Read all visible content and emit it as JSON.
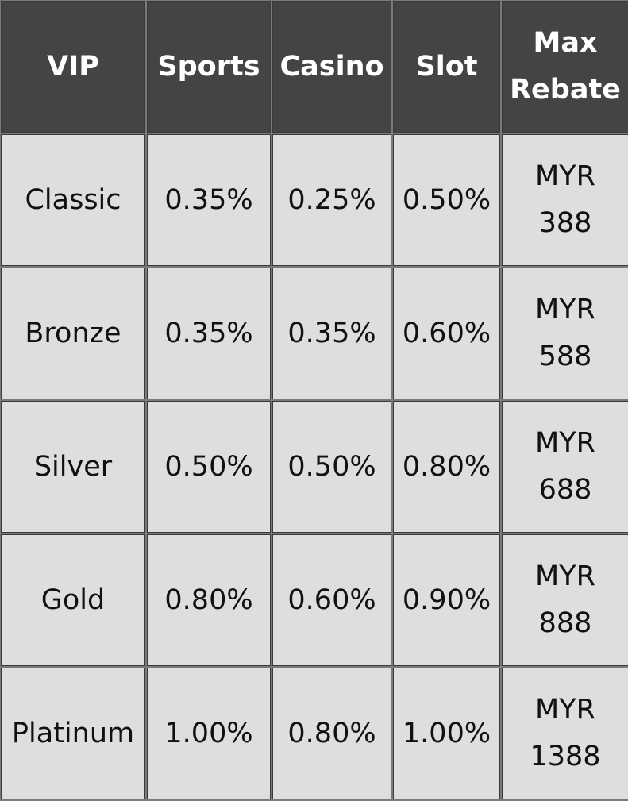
{
  "table": {
    "headers": [
      "VIP",
      "Sports",
      "Casino",
      "Slot",
      "Max Rebate"
    ],
    "rows": [
      [
        "Classic",
        "0.35%",
        "0.25%",
        "0.50%",
        "MYR 388"
      ],
      [
        "Bronze",
        "0.35%",
        "0.35%",
        "0.60%",
        "MYR 588"
      ],
      [
        "Silver",
        "0.50%",
        "0.50%",
        "0.80%",
        "MYR 688"
      ],
      [
        "Gold",
        "0.80%",
        "0.60%",
        "0.90%",
        "MYR 888"
      ],
      [
        "Platinum",
        "1.00%",
        "0.80%",
        "1.00%",
        "MYR 1388"
      ]
    ]
  },
  "colors": {
    "header_bg": "#444444",
    "cell_bg": "#dedede",
    "border": "#7a7a7a"
  }
}
